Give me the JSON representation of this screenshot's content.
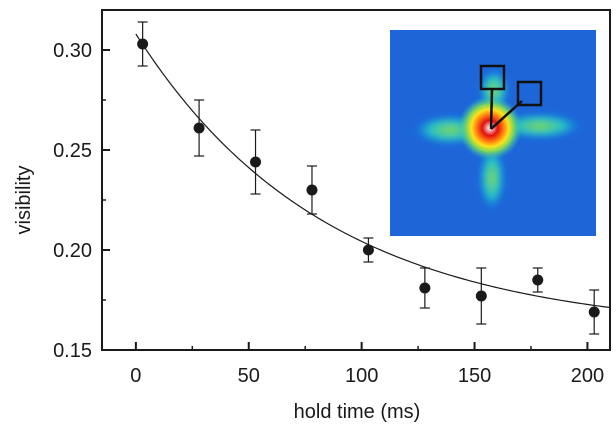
{
  "chart_data": {
    "type": "scatter",
    "title": "",
    "xlabel": "hold time (ms)",
    "ylabel": "visibility",
    "xlim": [
      -15,
      210
    ],
    "ylim": [
      0.15,
      0.32
    ],
    "xticks": [
      0,
      50,
      100,
      150,
      200
    ],
    "xtick_labels": [
      "0",
      "50",
      "100",
      "150",
      "200"
    ],
    "yticks": [
      0.15,
      0.2,
      0.25,
      0.3
    ],
    "ytick_labels": [
      "0.15",
      "0.20",
      "0.25",
      "0.30"
    ],
    "grid": false,
    "series": [
      {
        "kind": "points-with-error-bars",
        "color": "#1a1a1a",
        "points": [
          {
            "x": 3,
            "y": 0.303,
            "err": 0.011
          },
          {
            "x": 28,
            "y": 0.261,
            "err": 0.014
          },
          {
            "x": 53,
            "y": 0.244,
            "err": 0.016
          },
          {
            "x": 78,
            "y": 0.23,
            "err": 0.012
          },
          {
            "x": 103,
            "y": 0.2,
            "err": 0.006
          },
          {
            "x": 128,
            "y": 0.181,
            "err": 0.01
          },
          {
            "x": 153,
            "y": 0.177,
            "err": 0.014
          },
          {
            "x": 178,
            "y": 0.185,
            "err": 0.006
          },
          {
            "x": 203,
            "y": 0.169,
            "err": 0.011
          }
        ]
      },
      {
        "kind": "fit-curve",
        "color": "#1a1a1a",
        "model": "exponential decay",
        "x_range": [
          0,
          210
        ],
        "params": {
          "offset": 0.159,
          "amplitude": 0.149,
          "tau": 84
        }
      }
    ],
    "inset": {
      "kind": "absorption image (false color)",
      "colormap": [
        "#1030b0",
        "#0a70e6",
        "#24c0c8",
        "#7fd65a",
        "#ffe21a",
        "#ff7a10",
        "#e01010",
        "#ffffff"
      ],
      "background": "#1e66d8",
      "markers": [
        "square marker (upper)",
        "square marker (upper right)"
      ]
    }
  }
}
